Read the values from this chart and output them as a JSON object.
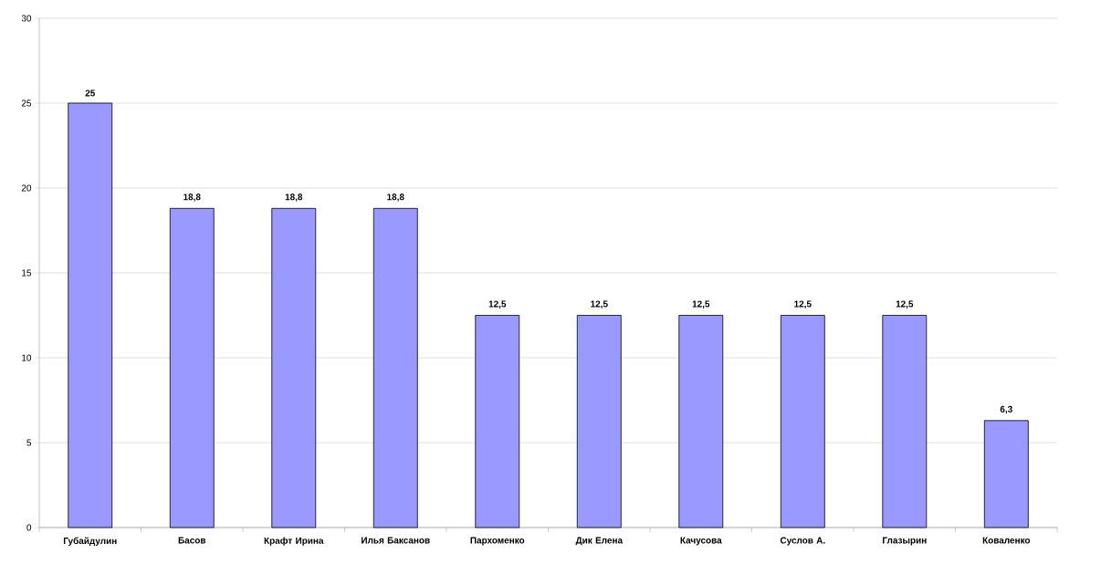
{
  "chart_data": {
    "type": "bar",
    "categories": [
      "Губайдулин",
      "Басов",
      "Крафт Ирина",
      "Илья Баксанов",
      "Пархоменко",
      "Дик Елена",
      "Качусова",
      "Суслов А.",
      "Глазырин",
      "Коваленко"
    ],
    "values": [
      25,
      18.8,
      18.8,
      18.8,
      12.5,
      12.5,
      12.5,
      12.5,
      12.5,
      6.3
    ],
    "value_labels": [
      "25",
      "18,8",
      "18,8",
      "18,8",
      "12,5",
      "12,5",
      "12,5",
      "12,5",
      "12,5",
      "6,3"
    ],
    "color": "#9999ff",
    "ylim": [
      0,
      30
    ],
    "yticks": [
      0,
      5,
      10,
      15,
      20,
      25,
      30
    ],
    "grid": "y"
  }
}
